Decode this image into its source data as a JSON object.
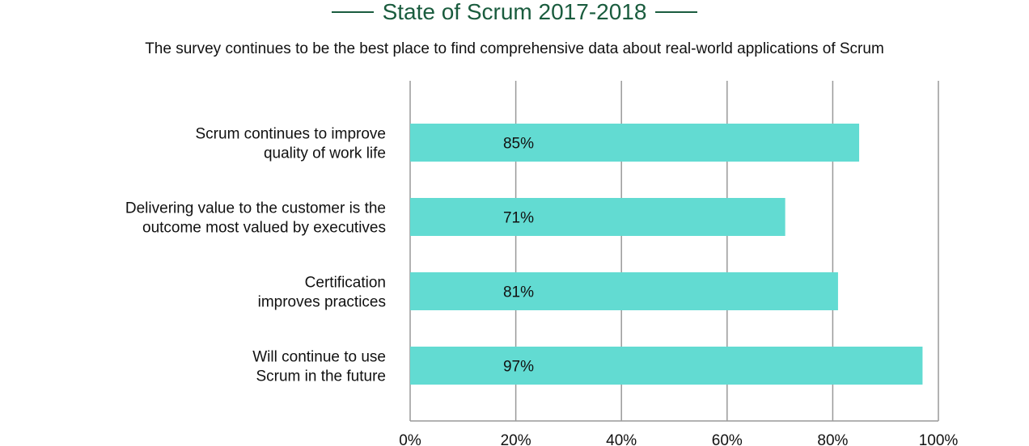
{
  "chart_data": {
    "type": "bar",
    "orientation": "horizontal",
    "title": "State of Scrum 2017-2018",
    "subtitle": "The survey continues to be the best place to find comprehensive data about real-world applications of Scrum",
    "categories": [
      [
        "Scrum continues to improve",
        "quality of work life"
      ],
      [
        "Delivering value to the customer is the",
        "outcome most valued by executives"
      ],
      [
        "Certification",
        "improves practices"
      ],
      [
        "Will continue to use",
        "Scrum in the future"
      ]
    ],
    "values": [
      85,
      71,
      81,
      97
    ],
    "data_labels": [
      "85%",
      "71%",
      "81%",
      "97%"
    ],
    "xlim": [
      0,
      100
    ],
    "x_ticks": [
      0,
      20,
      40,
      60,
      80,
      100
    ],
    "x_tick_labels": [
      "0%",
      "20%",
      "40%",
      "60%",
      "80%",
      "100%"
    ],
    "grid": true,
    "legend": "none",
    "colors": {
      "bar": "#62dbd2",
      "title": "#1a5c3e",
      "grid": "#999999",
      "text": "#111111"
    }
  }
}
